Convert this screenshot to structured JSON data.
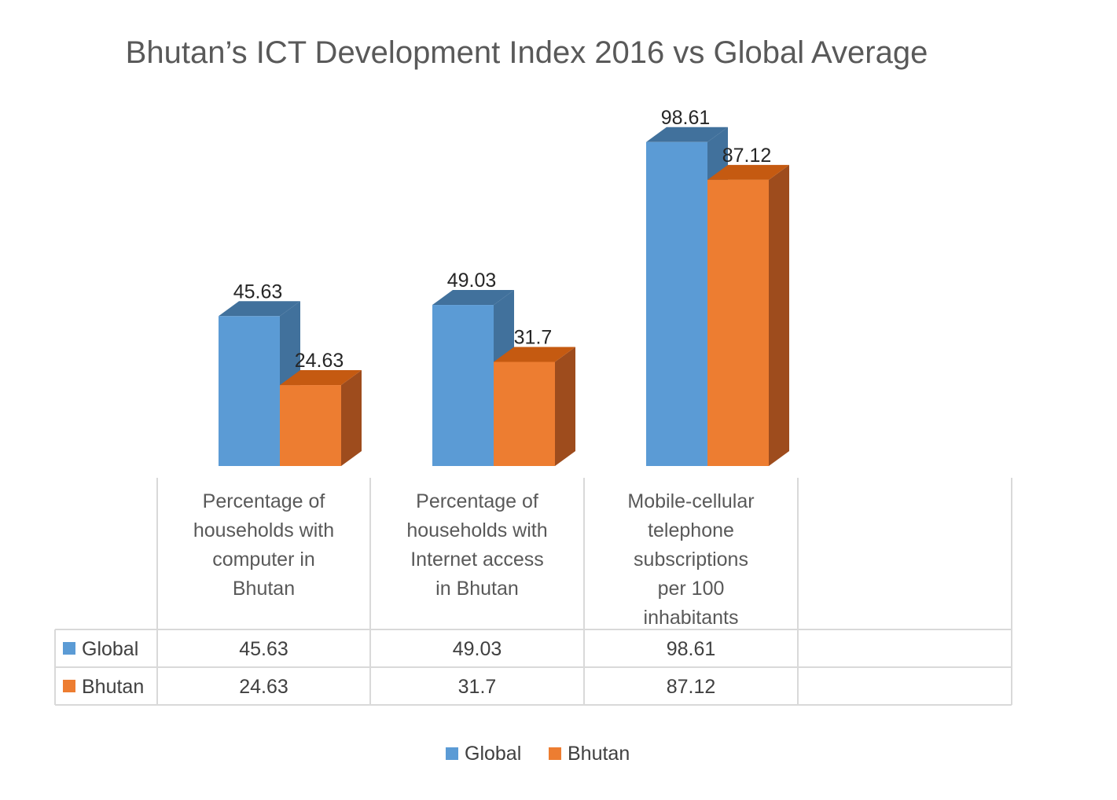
{
  "chart_data": {
    "type": "bar",
    "title": "Bhutan’s ICT Development Index 2016 vs Global Average",
    "categories": [
      "Percentage of households with computer in Bhutan",
      "Percentage of households with Internet access in Bhutan",
      "Mobile-cellular telephone subscriptions per 100 inhabitants"
    ],
    "category_lines": [
      [
        "Percentage of",
        "households with",
        "computer in",
        "Bhutan"
      ],
      [
        "Percentage of",
        "households with",
        "Internet access",
        "in Bhutan"
      ],
      [
        "Mobile-cellular",
        "telephone",
        "subscriptions",
        "per 100",
        "inhabitants"
      ]
    ],
    "series": [
      {
        "name": "Global",
        "values": [
          45.63,
          49.03,
          98.61
        ],
        "labels": [
          "45.63",
          "49.03",
          "98.61"
        ],
        "color": "#5b9bd5",
        "top_color": "#41719c",
        "side_color": "#41719c"
      },
      {
        "name": "Bhutan",
        "values": [
          24.63,
          31.7,
          87.12
        ],
        "labels": [
          "24.63",
          "31.7",
          "87.12"
        ],
        "color": "#ed7d31",
        "top_color": "#c55a11",
        "side_color": "#9e4c1d"
      }
    ],
    "data_table": true,
    "legend": "bottom",
    "grid": false,
    "3d": true
  }
}
